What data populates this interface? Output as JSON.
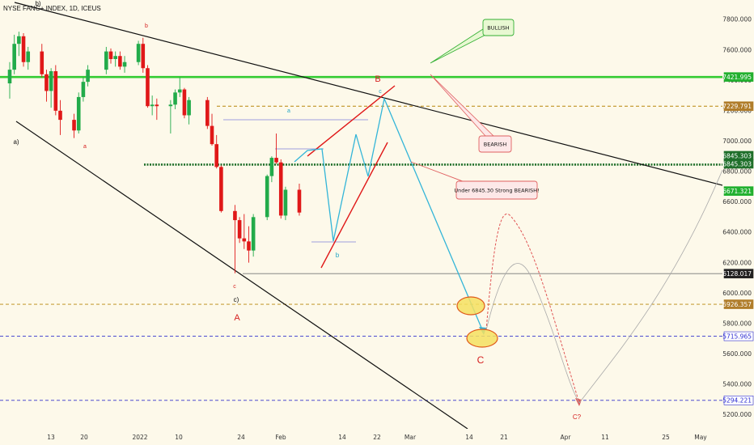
{
  "chart_data": {
    "type": "candlestick",
    "title": "NYSE FANG+ INDEX, 1D, ICEUS",
    "y_axis": {
      "ticks": [
        "7800.000",
        "7600.000",
        "7400.000",
        "7200.000",
        "7000.000",
        "6800.000",
        "6600.000",
        "6400.000",
        "6200.000",
        "6000.000",
        "5800.000",
        "5600.000",
        "5400.000",
        "5200.000"
      ],
      "range": [
        5160,
        7870
      ],
      "position": "right"
    },
    "x_axis": {
      "ticks": [
        "13",
        "20",
        "2022",
        "10",
        "24",
        "Feb",
        "14",
        "22",
        "Mar",
        "14",
        "21",
        "Apr",
        "11",
        "25",
        "May"
      ],
      "start_date": "2021-12-06",
      "end_date": "2022-05-06"
    },
    "candles": [
      {
        "date": "2021-12-06",
        "o": 7380,
        "h": 7520,
        "l": 7280,
        "c": 7470
      },
      {
        "date": "2021-12-07",
        "o": 7470,
        "h": 7700,
        "l": 7440,
        "c": 7640
      },
      {
        "date": "2021-12-08",
        "o": 7640,
        "h": 7720,
        "l": 7560,
        "c": 7690
      },
      {
        "date": "2021-12-09",
        "o": 7690,
        "h": 7710,
        "l": 7490,
        "c": 7520
      },
      {
        "date": "2021-12-10",
        "o": 7520,
        "h": 7620,
        "l": 7470,
        "c": 7590
      },
      {
        "date": "2021-12-13",
        "o": 7590,
        "h": 7640,
        "l": 7420,
        "c": 7440
      },
      {
        "date": "2021-12-14",
        "o": 7440,
        "h": 7470,
        "l": 7260,
        "c": 7330
      },
      {
        "date": "2021-12-15",
        "o": 7330,
        "h": 7480,
        "l": 7220,
        "c": 7460
      },
      {
        "date": "2021-12-16",
        "o": 7460,
        "h": 7500,
        "l": 7170,
        "c": 7200
      },
      {
        "date": "2021-12-17",
        "o": 7200,
        "h": 7270,
        "l": 7040,
        "c": 7140
      },
      {
        "date": "2021-12-20",
        "o": 7140,
        "h": 7180,
        "l": 7020,
        "c": 7070
      },
      {
        "date": "2021-12-21",
        "o": 7070,
        "h": 7320,
        "l": 7050,
        "c": 7290
      },
      {
        "date": "2021-12-22",
        "o": 7290,
        "h": 7420,
        "l": 7260,
        "c": 7390
      },
      {
        "date": "2021-12-23",
        "o": 7390,
        "h": 7500,
        "l": 7360,
        "c": 7470
      },
      {
        "date": "2021-12-27",
        "o": 7470,
        "h": 7620,
        "l": 7440,
        "c": 7590
      },
      {
        "date": "2021-12-28",
        "o": 7590,
        "h": 7610,
        "l": 7510,
        "c": 7540
      },
      {
        "date": "2021-12-29",
        "o": 7540,
        "h": 7590,
        "l": 7490,
        "c": 7560
      },
      {
        "date": "2021-12-30",
        "o": 7560,
        "h": 7590,
        "l": 7470,
        "c": 7490
      },
      {
        "date": "2021-12-31",
        "o": 7490,
        "h": 7560,
        "l": 7450,
        "c": 7520
      },
      {
        "date": "2022-01-03",
        "o": 7520,
        "h": 7660,
        "l": 7500,
        "c": 7640
      },
      {
        "date": "2022-01-04",
        "o": 7640,
        "h": 7680,
        "l": 7450,
        "c": 7480
      },
      {
        "date": "2022-01-05",
        "o": 7480,
        "h": 7500,
        "l": 7220,
        "c": 7230
      },
      {
        "date": "2022-01-06",
        "o": 7230,
        "h": 7300,
        "l": 7170,
        "c": 7240
      },
      {
        "date": "2022-01-07",
        "o": 7240,
        "h": 7280,
        "l": 7140,
        "c": 7230
      },
      {
        "date": "2022-01-10",
        "o": 7230,
        "h": 7270,
        "l": 7050,
        "c": 7240
      },
      {
        "date": "2022-01-11",
        "o": 7240,
        "h": 7340,
        "l": 7210,
        "c": 7320
      },
      {
        "date": "2022-01-12",
        "o": 7320,
        "h": 7420,
        "l": 7290,
        "c": 7340
      },
      {
        "date": "2022-01-13",
        "o": 7340,
        "h": 7350,
        "l": 7150,
        "c": 7170
      },
      {
        "date": "2022-01-14",
        "o": 7170,
        "h": 7290,
        "l": 7110,
        "c": 7270
      },
      {
        "date": "2022-01-18",
        "o": 7270,
        "h": 7290,
        "l": 7080,
        "c": 7100
      },
      {
        "date": "2022-01-19",
        "o": 7100,
        "h": 7180,
        "l": 6970,
        "c": 6980
      },
      {
        "date": "2022-01-20",
        "o": 6980,
        "h": 7040,
        "l": 6820,
        "c": 6830
      },
      {
        "date": "2022-01-21",
        "o": 6830,
        "h": 6840,
        "l": 6530,
        "c": 6540
      },
      {
        "date": "2022-01-24",
        "o": 6540,
        "h": 6580,
        "l": 6130,
        "c": 6480
      },
      {
        "date": "2022-01-25",
        "o": 6480,
        "h": 6500,
        "l": 6330,
        "c": 6360
      },
      {
        "date": "2022-01-26",
        "o": 6360,
        "h": 6520,
        "l": 6290,
        "c": 6340
      },
      {
        "date": "2022-01-27",
        "o": 6340,
        "h": 6440,
        "l": 6200,
        "c": 6280
      },
      {
        "date": "2022-01-28",
        "o": 6280,
        "h": 6520,
        "l": 6240,
        "c": 6500
      },
      {
        "date": "2022-01-31",
        "o": 6500,
        "h": 6780,
        "l": 6480,
        "c": 6770
      },
      {
        "date": "2022-02-01",
        "o": 6770,
        "h": 6900,
        "l": 6730,
        "c": 6890
      },
      {
        "date": "2022-02-02",
        "o": 6890,
        "h": 7050,
        "l": 6850,
        "c": 6860
      },
      {
        "date": "2022-02-03",
        "o": 6860,
        "h": 6880,
        "l": 6490,
        "c": 6510
      },
      {
        "date": "2022-02-04",
        "o": 6510,
        "h": 6700,
        "l": 6480,
        "c": 6680
      },
      {
        "date": "2022-02-07",
        "o": 6680,
        "h": 6720,
        "l": 6510,
        "c": 6530
      }
    ],
    "horizontal_levels": [
      {
        "value": "7421.995",
        "color": "#33cc33",
        "style": "solid"
      },
      {
        "value": "7229.791",
        "color": "#b8860b",
        "style": "dashed"
      },
      {
        "value": "6845.303",
        "color": "#1f6f2a",
        "style": "dotted"
      },
      {
        "value": "6128.017",
        "color": "#777777",
        "style": "solid"
      },
      {
        "value": "5926.357",
        "color": "#b8860b",
        "style": "dashed"
      },
      {
        "value": "5715.965",
        "color": "#3333cc",
        "style": "dashed"
      },
      {
        "value": "5294.221",
        "color": "#3333cc",
        "style": "dashed"
      }
    ],
    "price_tags": [
      {
        "value": "7421.995",
        "bg": "#22b02f",
        "fg": "#ffffff"
      },
      {
        "value": "7229.791",
        "bg": "#b07d2a",
        "fg": "#ffffff"
      },
      {
        "value": "6845.303",
        "bg": "#1f6f2a",
        "fg": "#ffffff"
      },
      {
        "value": "6845.303",
        "bg": "#1f6f2a",
        "fg": "#ffffff"
      },
      {
        "value": "6671.321",
        "bg": "#22b02f",
        "fg": "#ffffff"
      },
      {
        "value": "6128.017",
        "bg": "#222222",
        "fg": "#ffffff"
      },
      {
        "value": "5926.357",
        "bg": "#b07d2a",
        "fg": "#ffffff"
      },
      {
        "value": "5715.965",
        "bg": "#ffffff",
        "fg": "#2a2ad0"
      },
      {
        "value": "5294.221",
        "bg": "#ffffff",
        "fg": "#2a2ad0"
      }
    ],
    "wave_labels": [
      {
        "text": "b)",
        "color": "#111111"
      },
      {
        "text": "b",
        "color": "#d62020"
      },
      {
        "text": "a)",
        "color": "#111111"
      },
      {
        "text": "a",
        "color": "#d62020"
      },
      {
        "text": "a",
        "color": "#22a5c5"
      },
      {
        "text": "c",
        "color": "#22a5c5"
      },
      {
        "text": "B",
        "color": "#d62020"
      },
      {
        "text": "b",
        "color": "#22a5c5"
      },
      {
        "text": "c",
        "color": "#d62020"
      },
      {
        "text": "c)",
        "color": "#111111"
      },
      {
        "text": "A",
        "color": "#d62020"
      },
      {
        "text": "C",
        "color": "#d62020"
      },
      {
        "text": "C?",
        "color": "#d62020"
      }
    ],
    "callouts": [
      {
        "text": "BULLISH",
        "bg": "#e8f8d2",
        "border": "#33b033"
      },
      {
        "text": "BEARISH",
        "bg": "#fde8e8",
        "border": "#e06060"
      },
      {
        "text": "Under 6845.30 Strong BEARISH!",
        "bg": "#fde8e8",
        "border": "#e06060"
      }
    ],
    "colors": {
      "background": "#fdf9ea",
      "up": "#22ab4a",
      "down": "#e01818",
      "zigzag": "#33b5d8",
      "channel": "#e01818",
      "trendline": "#111111",
      "projection": "#e05555"
    },
    "grid": false
  }
}
